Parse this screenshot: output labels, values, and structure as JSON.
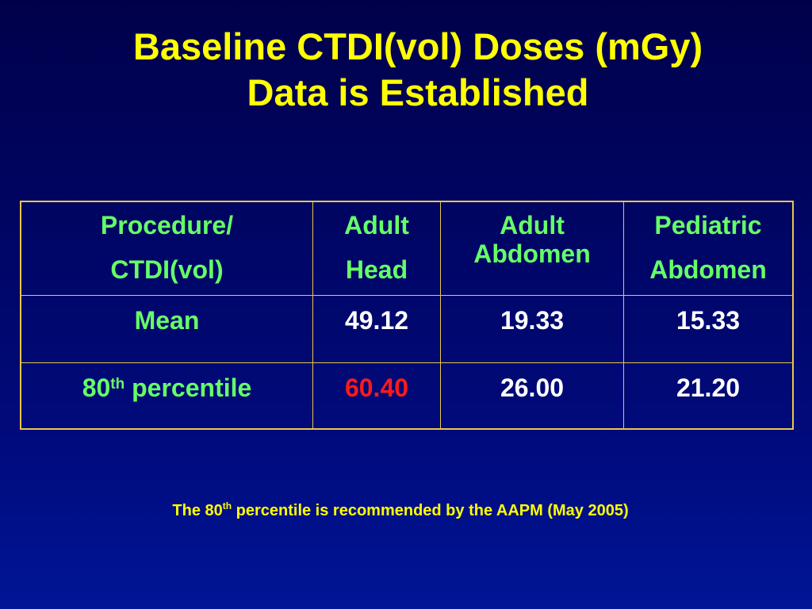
{
  "slide": {
    "title_line1": "Baseline CTDI(vol) Doses (mGy)",
    "title_line2": "Data is Established"
  },
  "table": {
    "headers": [
      {
        "line1": "Procedure/",
        "line2": "CTDI(vol)"
      },
      {
        "line1": "Adult",
        "line2": "Head"
      },
      {
        "line1": "Adult",
        "line2": "Abdomen"
      },
      {
        "line1": "Pediatric",
        "line2": "Abdomen"
      }
    ],
    "rows": [
      {
        "label": "Mean",
        "values": [
          "49.12",
          "19.33",
          "15.33"
        ]
      },
      {
        "label_number": "80",
        "label_suffix": "th",
        "label_rest": " percentile",
        "values": [
          "60.40",
          "26.00",
          "21.20"
        ]
      }
    ]
  },
  "footnote": {
    "prefix": "The 80",
    "suffix": "th",
    "rest": " percentile is recommended by the AAPM (May 2005)"
  },
  "colors": {
    "title": "#ffff00",
    "header_text": "#66ff66",
    "value_text": "#ffffff",
    "highlight_value": "#ff1a1a",
    "table_border": "#e6c84a",
    "background": "#00004a"
  }
}
